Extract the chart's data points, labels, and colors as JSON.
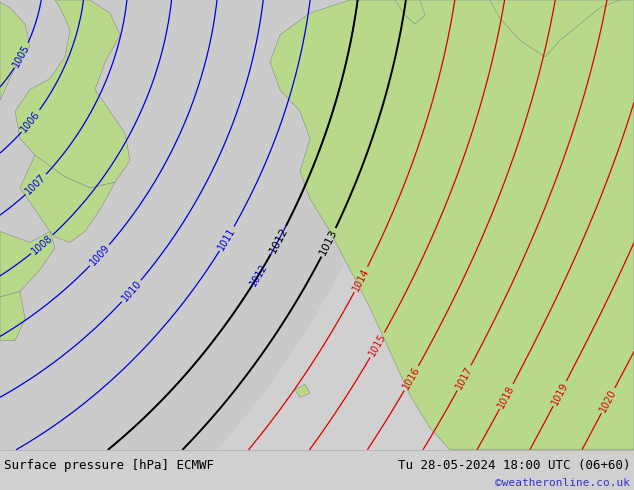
{
  "title_left": "Surface pressure [hPa] ECMWF",
  "title_right": "Tu 28-05-2024 18:00 UTC (06+60)",
  "watermark": "©weatheronline.co.uk",
  "bg_color": "#d0d0d0",
  "land_color": "#b8d98a",
  "sea_color": "#c8c8c8",
  "blue_color": "#0000dd",
  "red_color": "#dd0000",
  "black_color": "#000000",
  "gray_outline": "#888888",
  "figsize": [
    6.34,
    4.9
  ],
  "dpi": 100,
  "bar_color": "#ffffff",
  "title_fontsize": 9,
  "watermark_color": "#3333cc",
  "label_fontsize": 7
}
